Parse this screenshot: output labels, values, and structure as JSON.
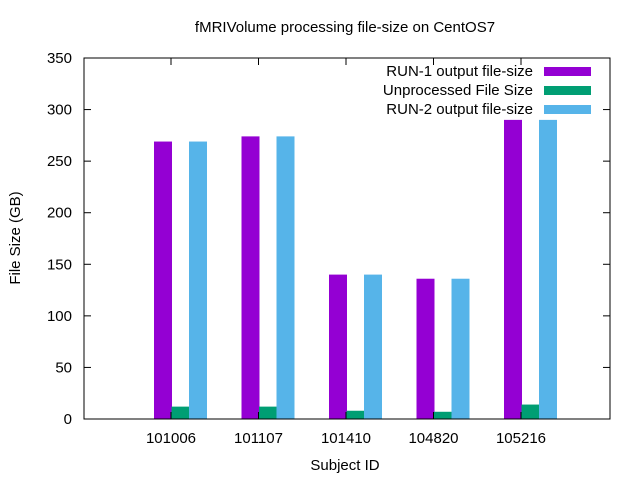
{
  "chart_data": {
    "type": "bar",
    "title": "fMRIVolume processing file-size on CentOS7",
    "xlabel": "Subject ID",
    "ylabel": "File Size (GB)",
    "ylim": [
      0,
      350
    ],
    "yticks": [
      0,
      50,
      100,
      150,
      200,
      250,
      300,
      350
    ],
    "categories": [
      "101006",
      "101107",
      "101410",
      "104820",
      "105216"
    ],
    "grid": false,
    "legend_position": "top-right",
    "series": [
      {
        "name": "RUN-1 output file-size",
        "color": "#9400d3",
        "values": [
          269,
          274,
          140,
          136,
          290
        ]
      },
      {
        "name": "Unprocessed File Size",
        "color": "#009e73",
        "values": [
          12,
          12,
          8,
          7,
          14
        ]
      },
      {
        "name": "RUN-2 output file-size",
        "color": "#56b4e9",
        "values": [
          269,
          274,
          140,
          136,
          290
        ]
      }
    ]
  }
}
